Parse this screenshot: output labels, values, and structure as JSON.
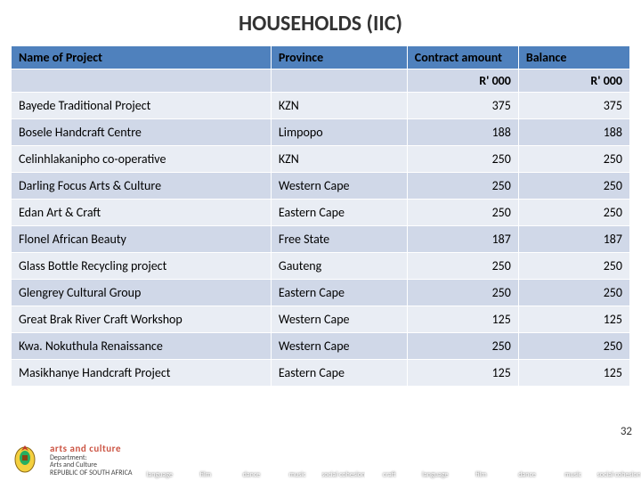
{
  "title": "HOUSEHOLDS (IIC)",
  "headers": {
    "name": "Name of Project",
    "province": "Province",
    "contract": "Contract amount",
    "balance": "Balance",
    "unit": "R' 000"
  },
  "rows": [
    {
      "name": "Bayede Traditional Project",
      "province": "KZN",
      "contract": "375",
      "balance": "375"
    },
    {
      "name": "Bosele Handcraft Centre",
      "province": "Limpopo",
      "contract": "188",
      "balance": "188"
    },
    {
      "name": "Celinhlakanipho co-operative",
      "province": "KZN",
      "contract": "250",
      "balance": "250"
    },
    {
      "name": "Darling Focus Arts & Culture",
      "province": "Western Cape",
      "contract": "250",
      "balance": "250"
    },
    {
      "name": "Edan Art & Craft",
      "province": "Eastern Cape",
      "contract": "250",
      "balance": "250"
    },
    {
      "name": "Flonel African Beauty",
      "province": "Free State",
      "contract": "187",
      "balance": "187"
    },
    {
      "name": "Glass Bottle Recycling project",
      "province": "Gauteng",
      "contract": "250",
      "balance": "250"
    },
    {
      "name": "Glengrey Cultural Group",
      "province": "Eastern Cape",
      "contract": "250",
      "balance": "250"
    },
    {
      "name": "Great Brak River Craft Workshop",
      "province": "Western Cape",
      "contract": "125",
      "balance": "125"
    },
    {
      "name": "Kwa. Nokuthula Renaissance",
      "province": "Western Cape",
      "contract": "250",
      "balance": "250"
    },
    {
      "name": "Masikhanye Handcraft Project",
      "province": "Eastern Cape",
      "contract": "125",
      "balance": "125"
    }
  ],
  "pagenum": "32",
  "dept": {
    "brand": "arts and culture",
    "line1": "Department:",
    "line2": "Arts and Culture",
    "line3": "REPUBLIC OF SOUTH AFRICA"
  },
  "tiles": [
    {
      "label": "language",
      "bg": "#a88"
    },
    {
      "label": "film",
      "bg": "#445"
    },
    {
      "label": "dance",
      "bg": "#8a9"
    },
    {
      "label": "music",
      "bg": "#765"
    },
    {
      "label": "social cohesion",
      "bg": "#986"
    },
    {
      "label": "craft",
      "bg": "#a87"
    },
    {
      "label": "language",
      "bg": "#678"
    },
    {
      "label": "film",
      "bg": "#889"
    },
    {
      "label": "dance",
      "bg": "#557"
    },
    {
      "label": "music",
      "bg": "#766"
    },
    {
      "label": "social cohesion",
      "bg": "#577"
    }
  ],
  "colors": {
    "header_bg": "#4f81bd",
    "sub_bg": "#d0d8e8",
    "row_odd": "#e9edf4",
    "row_even": "#d0d8e8"
  }
}
